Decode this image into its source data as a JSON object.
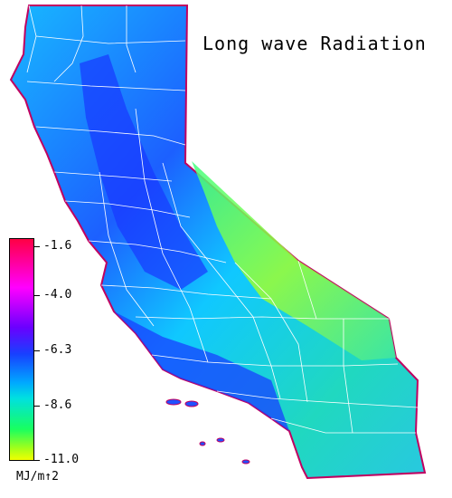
{
  "title": "Long wave Radiation",
  "legend": {
    "tick_labels": [
      "-1.6",
      "-4.0",
      "-6.3",
      "-8.6",
      "-11.0"
    ],
    "unit": "MJ/m↑2",
    "color_min": "#f0ff00",
    "color_max": "#ff0044"
  },
  "colors": {
    "ocean": "#ffffff",
    "county_lines": "#ffffff",
    "coast_edge": "#d0005a",
    "low_values": "#a8ff18",
    "mid_values": "#00a8ff",
    "high_values": "#1840ff"
  }
}
